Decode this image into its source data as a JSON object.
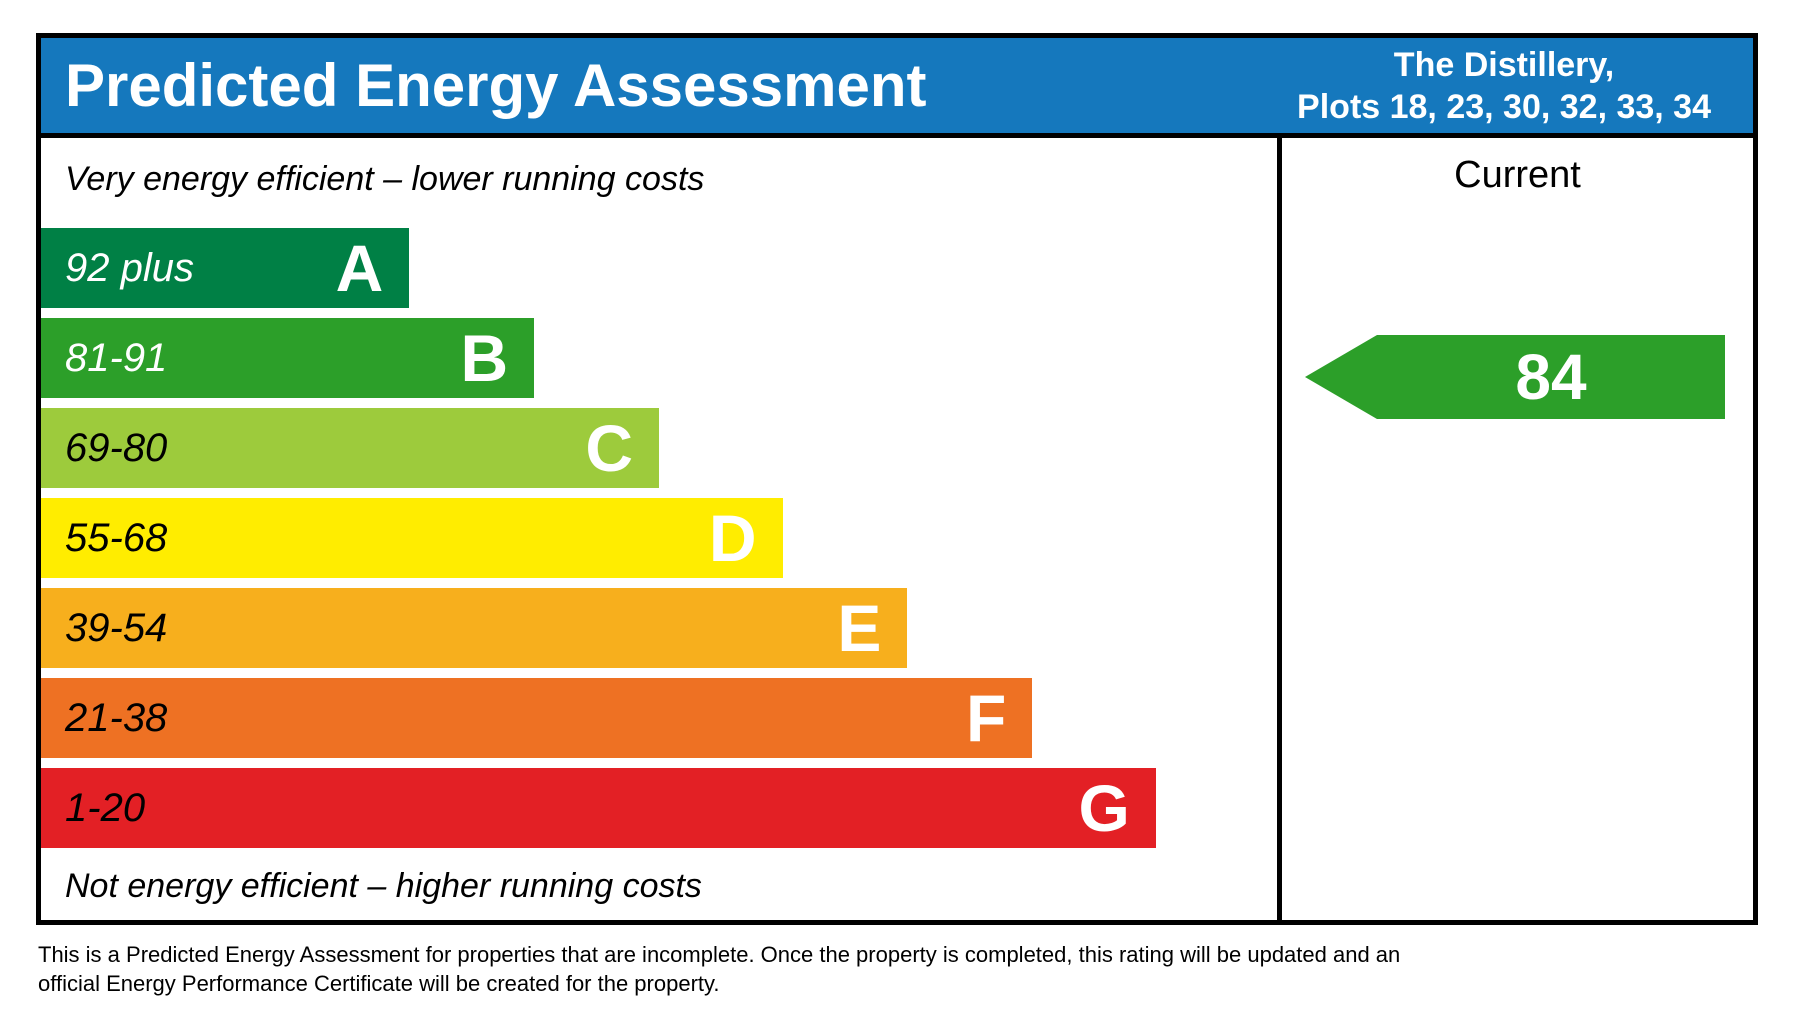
{
  "header": {
    "title": "Predicted Energy Assessment",
    "property_line1": "The Distillery,",
    "property_line2": "Plots 18, 23, 30, 32, 33, 34",
    "background": "#1578bd"
  },
  "captions": {
    "top": "Very energy efficient – lower running costs",
    "bottom": "Not energy efficient – higher running costs"
  },
  "current_column": {
    "label": "Current"
  },
  "chart_data": {
    "type": "bar",
    "title": "Predicted Energy Assessment",
    "bands": [
      {
        "letter": "A",
        "range": "92 plus",
        "color": "#008045",
        "range_text_color": "#ffffff",
        "width_pct": 29.8
      },
      {
        "letter": "B",
        "range": "81-91",
        "color": "#2c9f29",
        "range_text_color": "#ffffff",
        "width_pct": 39.9
      },
      {
        "letter": "C",
        "range": "69-80",
        "color": "#9dcb3c",
        "range_text_color": "#000000",
        "width_pct": 50.0
      },
      {
        "letter": "D",
        "range": "55-68",
        "color": "#ffed00",
        "range_text_color": "#000000",
        "width_pct": 60.0
      },
      {
        "letter": "E",
        "range": "39-54",
        "color": "#f7af1d",
        "range_text_color": "#000000",
        "width_pct": 70.1
      },
      {
        "letter": "F",
        "range": "21-38",
        "color": "#ee7123",
        "range_text_color": "#000000",
        "width_pct": 80.2
      },
      {
        "letter": "G",
        "range": "1-20",
        "color": "#e32025",
        "range_text_color": "#000000",
        "width_pct": 90.2
      }
    ],
    "current_rating": {
      "value": 84,
      "band": "B",
      "color": "#2c9f29"
    }
  },
  "footnote": {
    "line1": "This is a Predicted Energy Assessment for properties that are incomplete. Once the property is completed, this rating will be updated and an",
    "line2": "official Energy Performance Certificate will be created for the property."
  }
}
